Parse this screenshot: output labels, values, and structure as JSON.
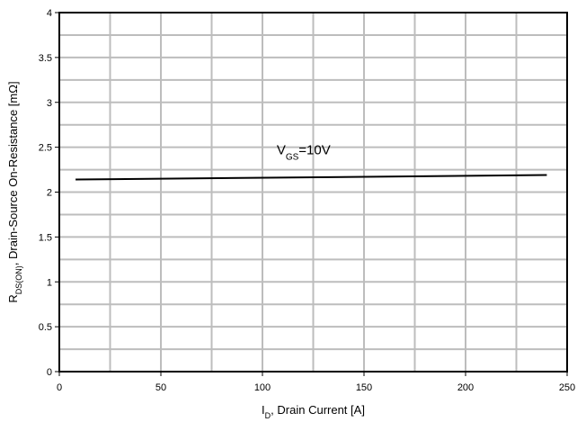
{
  "chart_data": {
    "type": "line",
    "xlabel": {
      "main": "I",
      "sub": "D",
      "rest": ", Drain Current [A]"
    },
    "ylabel": {
      "main": "R",
      "sub": "DS(ON)",
      "rest": ", Drain-Source On-Resistance [mΩ]"
    },
    "xlim": [
      0,
      250
    ],
    "ylim": [
      0,
      4
    ],
    "x_ticks": [
      0,
      50,
      100,
      150,
      200,
      250
    ],
    "y_ticks": [
      0,
      0.5,
      1,
      1.5,
      2,
      2.5,
      3,
      3.5,
      4
    ],
    "x_tick_labels": [
      "0",
      "50",
      "100",
      "150",
      "200",
      "250"
    ],
    "y_tick_labels": [
      "0",
      "0.5",
      "1",
      "1.5",
      "2",
      "2.5",
      "3",
      "3.5",
      "4"
    ],
    "x_grid_step": 25,
    "y_grid_step": 0.25,
    "grid": true,
    "series": [
      {
        "color": "#000000",
        "x": [
          8,
          240
        ],
        "y": [
          2.14,
          2.19
        ]
      }
    ],
    "annotations": [
      {
        "main": "V",
        "sub": "GS",
        "rest": "=10V",
        "x": 107,
        "y": 2.42
      }
    ]
  }
}
